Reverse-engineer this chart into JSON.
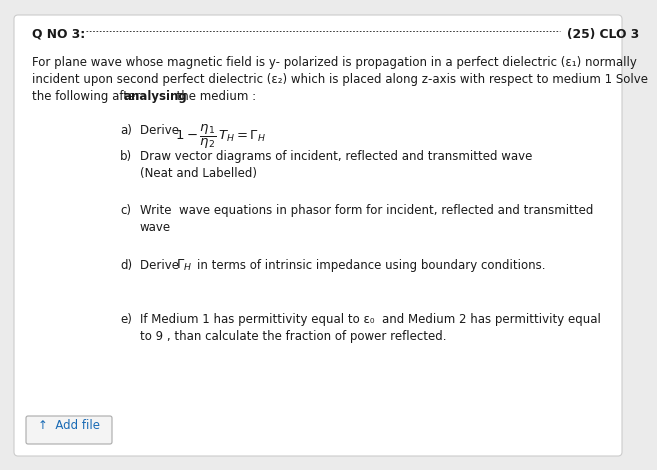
{
  "background_color": "#ebebeb",
  "card_color": "#ffffff",
  "border_color": "#cccccc",
  "text_color": "#1a1a1a",
  "add_file_color": "#1a6bb5",
  "font_size": 8.5,
  "title_bold_text": "Q NO 3:",
  "dashes": "------------------------------------------------------------------------------------------------------",
  "marks_text": "(25) CLO 3",
  "intro1": "For plane wave whose magnetic field is y- polarized is propagation in a perfect dielectric (ε₁) normally",
  "intro2": "incident upon second perfect dielectric (ε₂) which is placed along z-axis with respect to medium 1 Solve",
  "intro3_pre": "the following after ",
  "intro3_bold": "analysing",
  "intro3_post": "  the medium :",
  "b_text1": "Draw vector diagrams of incident, reflected and transmitted wave",
  "b_text2": "(Neat and Labelled)",
  "c_text1": "Write  wave equations in phasor form for incident, reflected and transmitted",
  "c_text2": "wave",
  "d_text2": "in terms of intrinsic impedance using boundary conditions.",
  "e_text1": "If Medium 1 has permittivity equal to ε₀  and Medium 2 has permittivity equal",
  "e_text2": "to 9 , than calculate the fraction of power reflected.",
  "add_file": "↑  Add file"
}
